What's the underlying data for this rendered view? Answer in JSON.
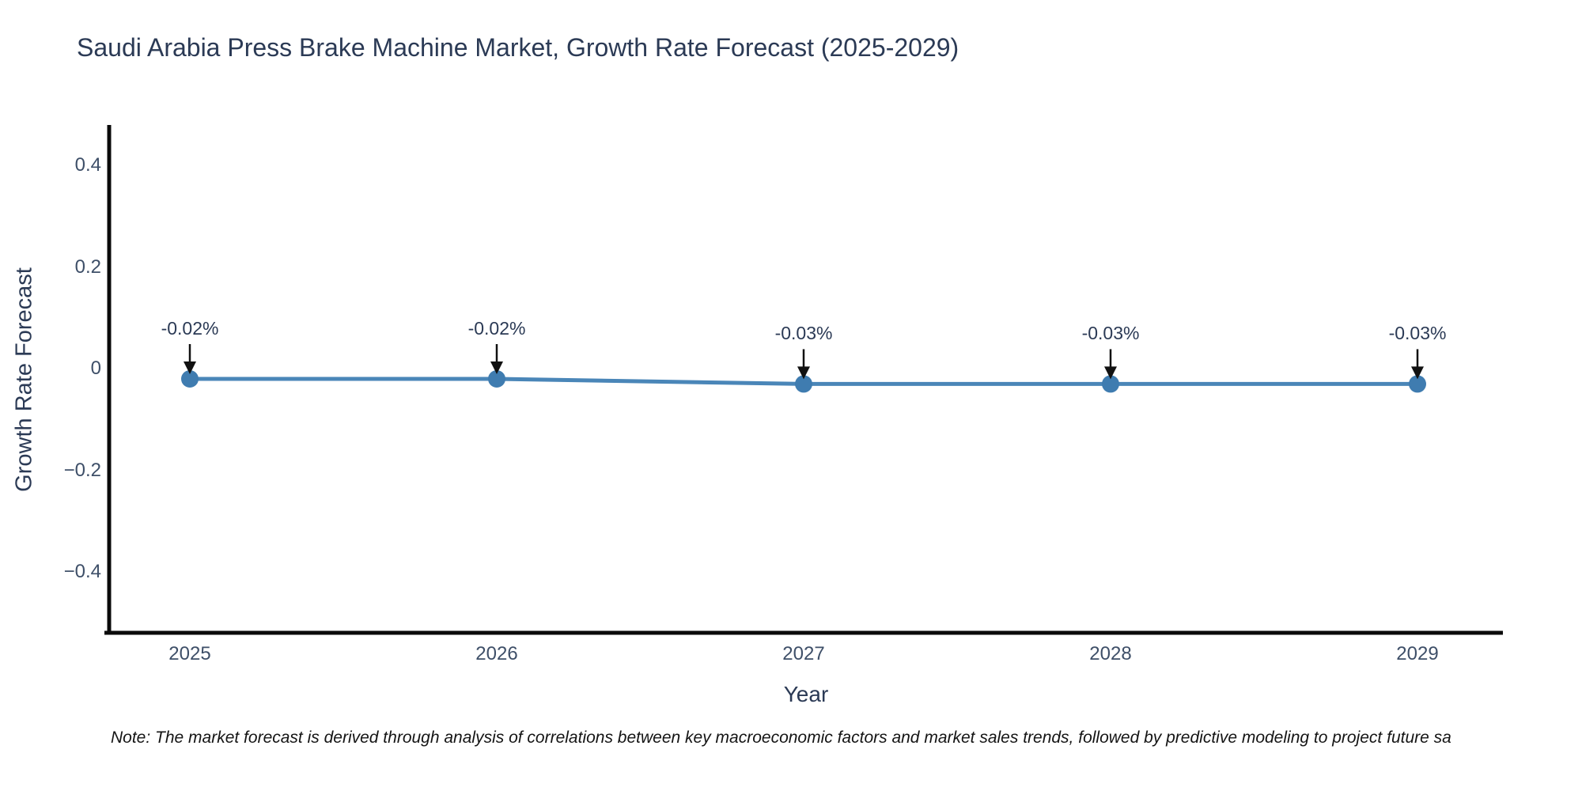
{
  "chart": {
    "title": "Saudi Arabia Press Brake Machine Market, Growth Rate Forecast (2025-2029)",
    "xlabel": "Year",
    "ylabel": "Growth Rate Forecast"
  },
  "chart_data": {
    "type": "line",
    "title": "Saudi Arabia Press Brake Machine Market, Growth Rate Forecast (2025-2029)",
    "xlabel": "Year",
    "ylabel": "Growth Rate Forecast",
    "categories": [
      "2025",
      "2026",
      "2027",
      "2028",
      "2029"
    ],
    "series": [
      {
        "name": "Growth Rate Forecast",
        "values": [
          -0.02,
          -0.02,
          -0.03,
          -0.03,
          -0.03
        ],
        "point_labels": [
          "-0.02%",
          "-0.02%",
          "-0.03%",
          "-0.03%",
          "-0.03%"
        ]
      }
    ],
    "yticks": [
      0.4,
      0.2,
      0,
      -0.2,
      -0.4
    ],
    "ytick_labels": [
      "0.4",
      "0.2",
      "0",
      "−0.2",
      "−0.4"
    ],
    "ylim": [
      -0.52,
      0.48
    ],
    "grid": false,
    "legend": "none",
    "colors": {
      "line": "#4a86b8",
      "marker": "#3f7cb0",
      "spine": "#0a0a0a",
      "annotation_arrow": "#111111",
      "title_text": "#2b3a55",
      "tick_text": "#3e4f68"
    }
  },
  "note": {
    "text": "Note: The market forecast is derived through analysis of correlations between key macroeconomic factors and market sales trends, followed by predictive modeling to project future sa"
  }
}
